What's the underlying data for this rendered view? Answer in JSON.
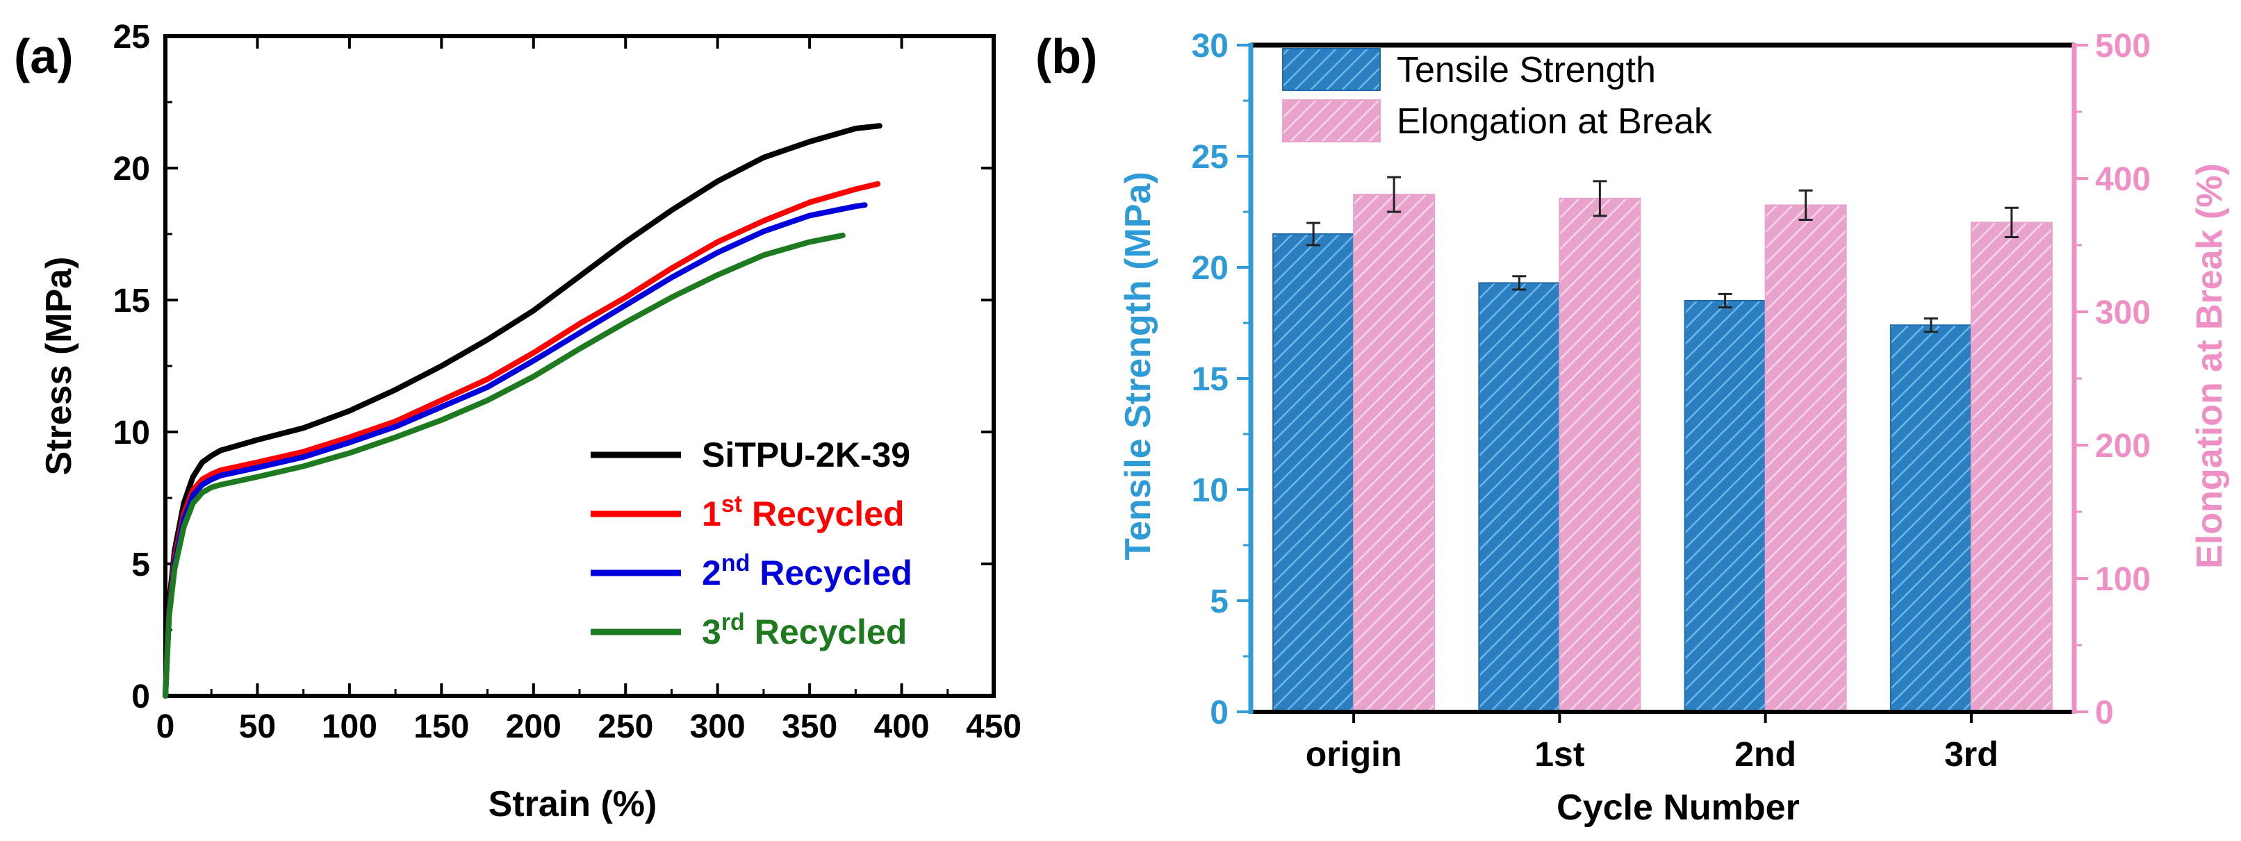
{
  "figure": {
    "panel_a_label": "(a)",
    "panel_b_label": "(b)"
  },
  "chart_data": [
    {
      "type": "line",
      "panel": "(a)",
      "xlabel": "Strain (%)",
      "ylabel": "Stress (MPa)",
      "xlim": [
        0,
        450
      ],
      "ylim": [
        0,
        25
      ],
      "xticks": [
        0,
        50,
        100,
        150,
        200,
        250,
        300,
        350,
        400,
        450
      ],
      "yticks": [
        0,
        5,
        10,
        15,
        20,
        25
      ],
      "legend_position": "bottom-right",
      "series": [
        {
          "name": "SiTPU-2K-39",
          "name_base": "SiTPU-2K-39",
          "name_sup": "",
          "name_rest": "",
          "color": "#000000",
          "x": [
            0,
            2,
            5,
            10,
            15,
            20,
            25,
            30,
            40,
            50,
            75,
            100,
            125,
            150,
            175,
            200,
            225,
            250,
            275,
            300,
            325,
            350,
            375,
            388
          ],
          "y": [
            0,
            3.5,
            5.5,
            7.3,
            8.3,
            8.85,
            9.1,
            9.3,
            9.5,
            9.7,
            10.15,
            10.8,
            11.6,
            12.5,
            13.5,
            14.6,
            15.9,
            17.2,
            18.4,
            19.5,
            20.4,
            21.0,
            21.5,
            21.6
          ]
        },
        {
          "name": "1st Recycled",
          "name_base": "1",
          "name_sup": "st",
          "name_rest": " Recycled",
          "color": "#ff0000",
          "x": [
            0,
            2,
            5,
            10,
            15,
            20,
            25,
            30,
            40,
            50,
            75,
            100,
            125,
            150,
            175,
            200,
            225,
            250,
            275,
            300,
            325,
            350,
            375,
            387
          ],
          "y": [
            0,
            3.2,
            5.2,
            6.9,
            7.8,
            8.2,
            8.4,
            8.55,
            8.7,
            8.85,
            9.25,
            9.8,
            10.4,
            11.2,
            12.0,
            13.0,
            14.1,
            15.1,
            16.2,
            17.2,
            18.0,
            18.7,
            19.2,
            19.4
          ]
        },
        {
          "name": "2nd Recycled",
          "name_base": "2",
          "name_sup": "nd",
          "name_rest": " Recycled",
          "color": "#0000dd",
          "x": [
            0,
            2,
            5,
            10,
            15,
            20,
            25,
            30,
            40,
            50,
            75,
            100,
            125,
            150,
            175,
            200,
            225,
            250,
            275,
            300,
            325,
            350,
            375,
            380
          ],
          "y": [
            0,
            3.1,
            5.0,
            6.7,
            7.6,
            8.0,
            8.2,
            8.35,
            8.5,
            8.65,
            9.05,
            9.6,
            10.2,
            10.95,
            11.7,
            12.7,
            13.75,
            14.8,
            15.85,
            16.8,
            17.6,
            18.2,
            18.55,
            18.6
          ]
        },
        {
          "name": "3rd Recycled",
          "name_base": "3",
          "name_sup": "rd",
          "name_rest": " Recycled",
          "color": "#1e7a1e",
          "x": [
            0,
            2,
            5,
            10,
            15,
            20,
            25,
            30,
            40,
            50,
            75,
            100,
            125,
            150,
            175,
            200,
            225,
            250,
            275,
            300,
            325,
            350,
            368
          ],
          "y": [
            0,
            3.0,
            4.8,
            6.4,
            7.3,
            7.7,
            7.9,
            8.0,
            8.15,
            8.3,
            8.7,
            9.2,
            9.8,
            10.45,
            11.2,
            12.1,
            13.15,
            14.15,
            15.1,
            15.95,
            16.7,
            17.2,
            17.45
          ]
        }
      ]
    },
    {
      "type": "bar",
      "panel": "(b)",
      "xlabel": "Cycle Number",
      "ylabel": "Tensile Strength (MPa)",
      "ylabel_right": "Elongation at Break (%)",
      "categories": [
        "origin",
        "1st",
        "2nd",
        "3rd"
      ],
      "ylim": [
        0,
        30
      ],
      "ylim_right": [
        0,
        500
      ],
      "yticks": [
        0,
        5,
        10,
        15,
        20,
        25,
        30
      ],
      "yticks_right": [
        0,
        100,
        200,
        300,
        400,
        500
      ],
      "legend_position": "top-left",
      "series": [
        {
          "name": "Tensile Strength",
          "axis": "left",
          "color": "#2b7fc0",
          "values": [
            21.5,
            19.3,
            18.5,
            17.4
          ],
          "errors": [
            0.5,
            0.3,
            0.3,
            0.3
          ]
        },
        {
          "name": "Elongation at Break",
          "axis": "right",
          "color": "#e8a3cc",
          "values": [
            388,
            385,
            380,
            367
          ],
          "errors": [
            13,
            13,
            11,
            11
          ]
        }
      ]
    }
  ],
  "colors": {
    "axis_left_b": "#2e9bd6",
    "axis_right_b": "#ee8fc6",
    "bar_blue": "#2b7fc0",
    "bar_blue_hatch": "#5aa8e0",
    "bar_pink": "#e8a3cc",
    "bar_pink_hatch": "#f7cde5"
  }
}
